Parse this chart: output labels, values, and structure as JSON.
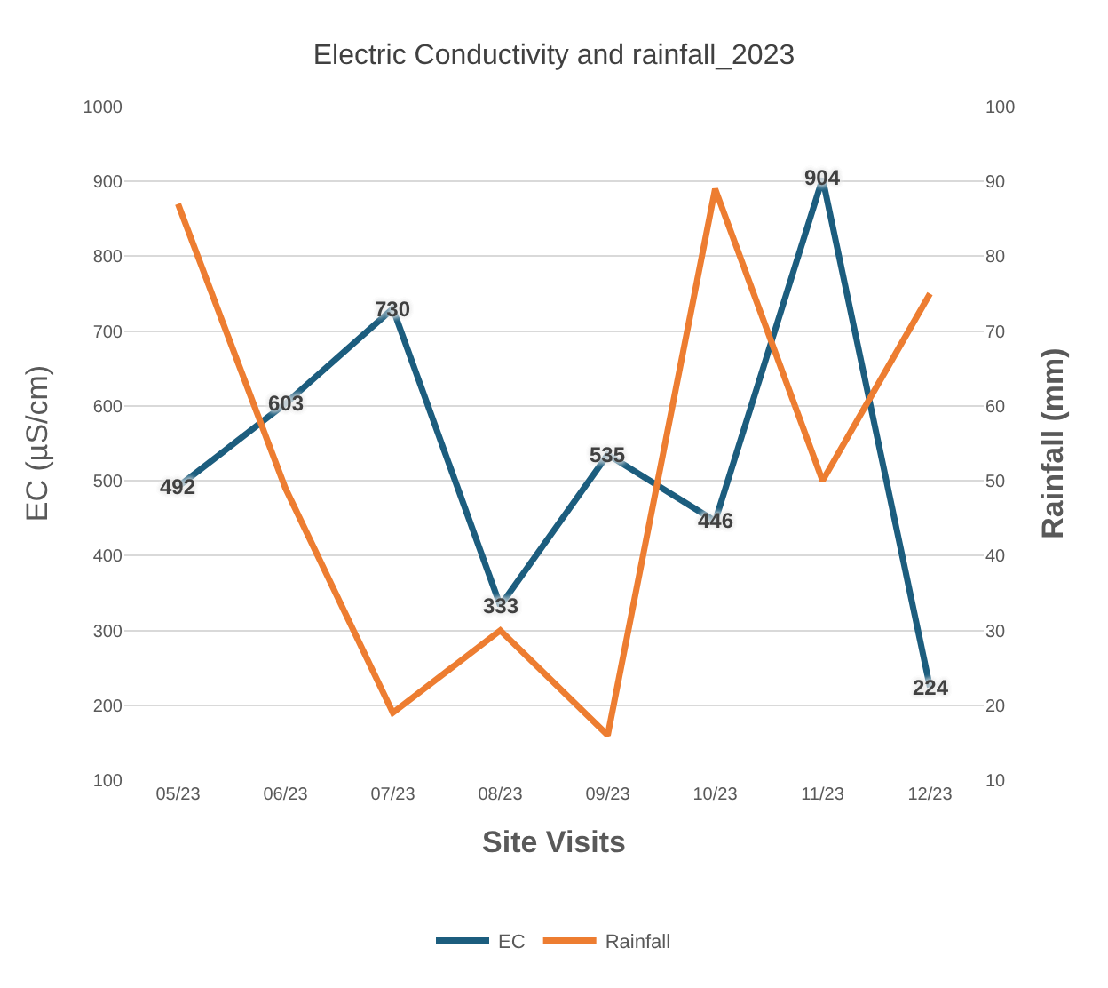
{
  "chart_data": {
    "type": "line",
    "title": "Electric Conductivity and rainfall_2023",
    "xlabel": "Site Visits",
    "ylabel": "EC (µS/cm)",
    "y2label": "Rainfall (mm)",
    "categories": [
      "05/23",
      "06/23",
      "07/23",
      "08/23",
      "09/23",
      "10/23",
      "11/23",
      "12/23"
    ],
    "series": [
      {
        "name": "EC",
        "color": "#1c5d7e",
        "values": [
          492,
          603,
          730,
          333,
          535,
          446,
          904,
          224
        ],
        "value_labels": [
          "492",
          "603",
          "730",
          "333",
          "535",
          "446",
          "904",
          "224"
        ]
      },
      {
        "name": "Rainfall",
        "color": "#ed7d31",
        "axis": "y2",
        "values": [
          87,
          49,
          19,
          30,
          16,
          89,
          50,
          75
        ]
      }
    ],
    "ylim": [
      100,
      1000
    ],
    "yticks": [
      100,
      200,
      300,
      400,
      500,
      600,
      700,
      800,
      900,
      1000
    ],
    "y2lim": [
      10,
      100
    ],
    "y2ticks": [
      10,
      20,
      30,
      40,
      50,
      60,
      70,
      80,
      90,
      100
    ],
    "grid": "y",
    "legend": "bottom",
    "marker": "none",
    "line_style": "solid"
  }
}
